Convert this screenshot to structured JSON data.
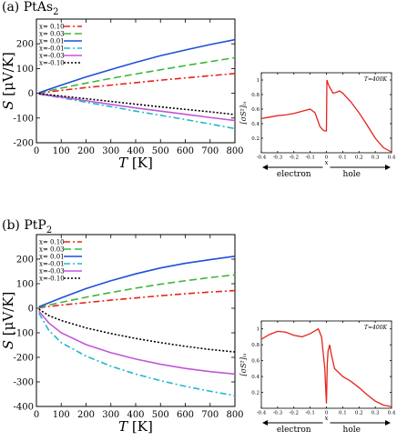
{
  "figure": {
    "panel_a_label": "(a) PtAs",
    "panel_a_sub": "2",
    "panel_b_label": "(b) PtP",
    "panel_b_sub": "2"
  },
  "chart_data": [
    {
      "id": "a-main",
      "type": "line",
      "title": "",
      "xlabel": "T [K]",
      "ylabel": "S [μV/K]",
      "xlim": [
        0,
        800
      ],
      "ylim": [
        -200,
        300
      ],
      "xticks": [
        0,
        100,
        200,
        300,
        400,
        500,
        600,
        700,
        800
      ],
      "yticks": [
        -200,
        -100,
        0,
        100,
        200
      ],
      "legend": "top-left",
      "series": [
        {
          "name": "x= 0.10",
          "color": "#e8221c",
          "dash": "7,3,2,3",
          "x": [
            10,
            100,
            200,
            300,
            400,
            500,
            600,
            700,
            800
          ],
          "values": [
            0,
            12,
            23,
            33,
            43,
            53,
            62,
            71,
            80
          ]
        },
        {
          "name": "x= 0.03",
          "color": "#3cb838",
          "dash": "8,4",
          "x": [
            10,
            100,
            200,
            300,
            400,
            500,
            600,
            700,
            800
          ],
          "values": [
            1,
            21,
            41,
            60,
            78,
            95,
            112,
            128,
            144
          ]
        },
        {
          "name": "x= 0.01",
          "color": "#1f4fd8",
          "dash": "",
          "x": [
            10,
            100,
            200,
            300,
            400,
            500,
            600,
            700,
            800
          ],
          "values": [
            2,
            33,
            66,
            96,
            125,
            152,
            175,
            197,
            217
          ]
        },
        {
          "name": "x=-0.01",
          "color": "#22b8cf",
          "dash": "7,3,2,3",
          "x": [
            10,
            100,
            200,
            300,
            400,
            500,
            600,
            700,
            800
          ],
          "values": [
            -3,
            -18,
            -36,
            -54,
            -72,
            -89,
            -106,
            -124,
            -143
          ]
        },
        {
          "name": "x=-0.03",
          "color": "#c455d8",
          "dash": "",
          "x": [
            10,
            100,
            200,
            300,
            400,
            500,
            600,
            700,
            800
          ],
          "values": [
            -3,
            -15,
            -30,
            -45,
            -59,
            -72,
            -85,
            -98,
            -110
          ]
        },
        {
          "name": "x=-0.10",
          "color": "#000000",
          "dash": "2,2",
          "x": [
            10,
            100,
            200,
            300,
            400,
            500,
            600,
            700,
            800
          ],
          "values": [
            -2,
            -11,
            -22,
            -33,
            -44,
            -55,
            -65,
            -75,
            -86
          ]
        }
      ]
    },
    {
      "id": "a-inset",
      "type": "line",
      "title": "",
      "annotation": "T=400K",
      "xlabel": "x",
      "ylabel": "[σS²]ₗₛ",
      "xlim": [
        -0.4,
        0.4
      ],
      "ylim": [
        0,
        1.1
      ],
      "xticks": [
        -0.4,
        -0.3,
        -0.2,
        -0.1,
        0,
        0.1,
        0.2,
        0.3,
        0.4
      ],
      "yticks": [
        0.2,
        0.4,
        0.6,
        0.8,
        1.0
      ],
      "arrow_left_label": "electron",
      "arrow_right_label": "hole",
      "series": [
        {
          "color": "#e8221c",
          "x": [
            -0.4,
            -0.35,
            -0.3,
            -0.25,
            -0.2,
            -0.15,
            -0.1,
            -0.07,
            -0.04,
            -0.02,
            -0.01,
            0,
            0.003,
            0.01,
            0.02,
            0.04,
            0.06,
            0.08,
            0.1,
            0.15,
            0.2,
            0.25,
            0.3,
            0.35,
            0.4
          ],
          "values": [
            0.47,
            0.49,
            0.51,
            0.52,
            0.54,
            0.57,
            0.6,
            0.55,
            0.36,
            0.31,
            0.3,
            0.3,
            1.0,
            0.95,
            0.9,
            0.82,
            0.83,
            0.85,
            0.82,
            0.7,
            0.55,
            0.38,
            0.2,
            0.07,
            0.01
          ]
        }
      ]
    },
    {
      "id": "b-main",
      "type": "line",
      "title": "",
      "xlabel": "T [K]",
      "ylabel": "S [μV/K]",
      "xlim": [
        0,
        800
      ],
      "ylim": [
        -400,
        300
      ],
      "xticks": [
        0,
        100,
        200,
        300,
        400,
        500,
        600,
        700,
        800
      ],
      "yticks": [
        -400,
        -300,
        -200,
        -100,
        0,
        100,
        200
      ],
      "legend": "top-left",
      "series": [
        {
          "name": "x= 0.10",
          "color": "#e8221c",
          "dash": "7,3,2,3",
          "x": [
            10,
            100,
            200,
            300,
            400,
            500,
            600,
            700,
            800
          ],
          "values": [
            2,
            13,
            23,
            33,
            42,
            51,
            59,
            66,
            72
          ]
        },
        {
          "name": "x= 0.03",
          "color": "#3cb838",
          "dash": "8,4",
          "x": [
            10,
            100,
            200,
            300,
            400,
            500,
            600,
            700,
            800
          ],
          "values": [
            4,
            24,
            45,
            64,
            82,
            98,
            112,
            125,
            136
          ]
        },
        {
          "name": "x= 0.01",
          "color": "#1f4fd8",
          "dash": "",
          "x": [
            10,
            100,
            200,
            300,
            400,
            500,
            600,
            700,
            800
          ],
          "values": [
            6,
            42,
            80,
            112,
            140,
            164,
            183,
            198,
            212
          ]
        },
        {
          "name": "x=-0.01",
          "color": "#22b8cf",
          "dash": "7,3,2,3",
          "x": [
            10,
            50,
            100,
            200,
            300,
            400,
            500,
            600,
            700,
            800
          ],
          "values": [
            -20,
            -90,
            -140,
            -195,
            -236,
            -268,
            -295,
            -318,
            -338,
            -356
          ]
        },
        {
          "name": "x=-0.03",
          "color": "#c455d8",
          "dash": "",
          "x": [
            10,
            50,
            100,
            200,
            300,
            400,
            500,
            600,
            700,
            800
          ],
          "values": [
            -12,
            -60,
            -100,
            -148,
            -181,
            -207,
            -228,
            -245,
            -258,
            -268
          ]
        },
        {
          "name": "x=-0.10",
          "color": "#000000",
          "dash": "2,2",
          "x": [
            10,
            50,
            100,
            200,
            300,
            400,
            500,
            600,
            700,
            800
          ],
          "values": [
            -4,
            -30,
            -50,
            -80,
            -103,
            -123,
            -140,
            -155,
            -168,
            -178
          ]
        }
      ]
    },
    {
      "id": "b-inset",
      "type": "line",
      "title": "",
      "annotation": "T=400K",
      "xlabel": "x",
      "ylabel": "[σS²]ₗₛ",
      "xlim": [
        -0.4,
        0.4
      ],
      "ylim": [
        0,
        1.1
      ],
      "xticks": [
        -0.4,
        -0.3,
        -0.2,
        -0.1,
        0,
        0.1,
        0.2,
        0.3,
        0.4
      ],
      "yticks": [
        0.2,
        0.4,
        0.6,
        0.8,
        1.0
      ],
      "arrow_left_label": "electron",
      "arrow_right_label": "hole",
      "series": [
        {
          "color": "#e8221c",
          "x": [
            -0.4,
            -0.35,
            -0.3,
            -0.25,
            -0.2,
            -0.15,
            -0.1,
            -0.05,
            -0.03,
            -0.01,
            0,
            0.005,
            0.01,
            0.02,
            0.03,
            0.05,
            0.1,
            0.15,
            0.2,
            0.25,
            0.3,
            0.35,
            0.4
          ],
          "values": [
            0.87,
            0.93,
            0.97,
            0.96,
            0.92,
            0.9,
            0.94,
            1.0,
            0.9,
            0.5,
            0.06,
            0.55,
            0.72,
            0.8,
            0.68,
            0.5,
            0.4,
            0.34,
            0.26,
            0.17,
            0.09,
            0.04,
            0.02
          ]
        }
      ]
    }
  ]
}
